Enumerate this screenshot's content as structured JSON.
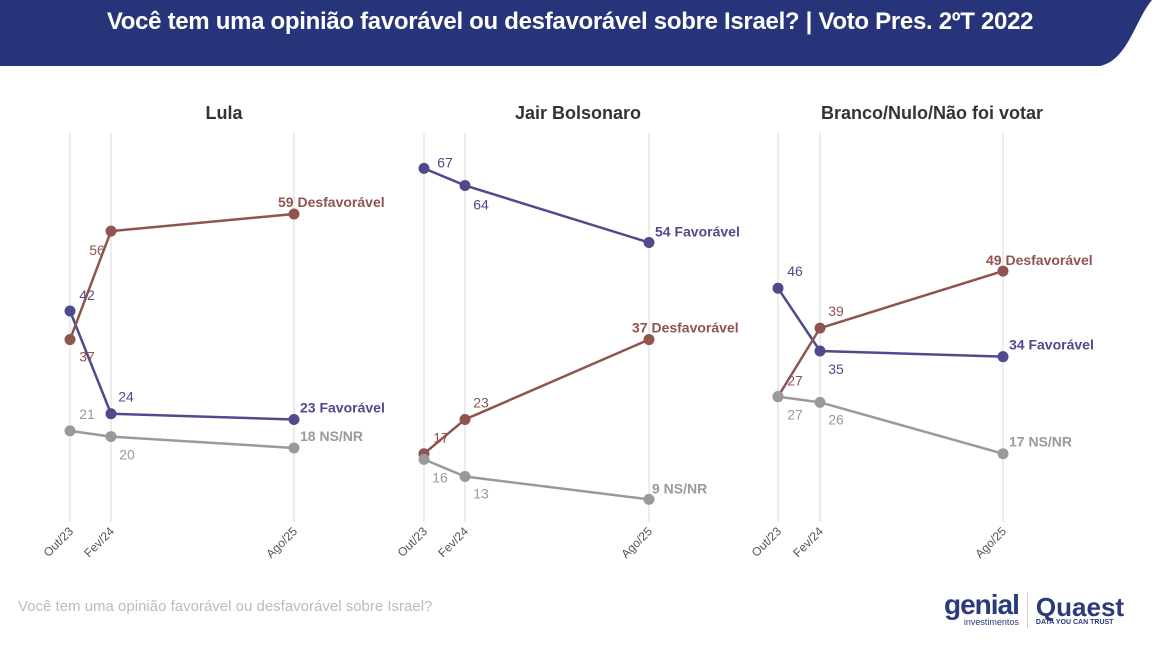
{
  "header": {
    "title": "Você tem uma opinião favorável ou desfavorável sobre Israel? | Voto Pres. 2ºT 2022",
    "bg": "#283479"
  },
  "footnote": "Você tem uma opinião favorável ou desfavorável sobre Israel?",
  "logos": {
    "genial": "genial",
    "genial_sub": "investimentos",
    "quaest": "Quaest",
    "quaest_sub": "DATA YOU CAN TRUST",
    "watermark": "genial investimentos"
  },
  "chart_data": [
    {
      "type": "line",
      "title": "Lula",
      "categories": [
        "Out/23",
        "Fev/24",
        "Ago/25"
      ],
      "series": [
        {
          "name": "Favorável",
          "color": "#4f4a8c",
          "values": [
            42,
            24,
            23
          ]
        },
        {
          "name": "Desfavorável",
          "color": "#8f544e",
          "values": [
            37,
            56,
            59
          ]
        },
        {
          "name": "NS/NR",
          "color": "#9a9a9a",
          "values": [
            21,
            20,
            18
          ]
        }
      ]
    },
    {
      "type": "line",
      "title": "Jair Bolsonaro",
      "categories": [
        "Out/23",
        "Fev/24",
        "Ago/25"
      ],
      "series": [
        {
          "name": "Favorável",
          "color": "#4f4a8c",
          "values": [
            67,
            64,
            54
          ]
        },
        {
          "name": "Desfavorável",
          "color": "#8f544e",
          "values": [
            17,
            23,
            37
          ]
        },
        {
          "name": "NS/NR",
          "color": "#9a9a9a",
          "values": [
            16,
            13,
            9
          ]
        }
      ]
    },
    {
      "type": "line",
      "title": "Branco/Nulo/Não foi votar",
      "categories": [
        "Out/23",
        "Fev/24",
        "Ago/25"
      ],
      "series": [
        {
          "name": "Favorável",
          "color": "#4f4a8c",
          "values": [
            46,
            35,
            34
          ]
        },
        {
          "name": "Desfavorável",
          "color": "#8f544e",
          "values": [
            27,
            39,
            49
          ]
        },
        {
          "name": "NS/NR",
          "color": "#9a9a9a",
          "values": [
            27,
            26,
            17
          ]
        }
      ]
    }
  ]
}
